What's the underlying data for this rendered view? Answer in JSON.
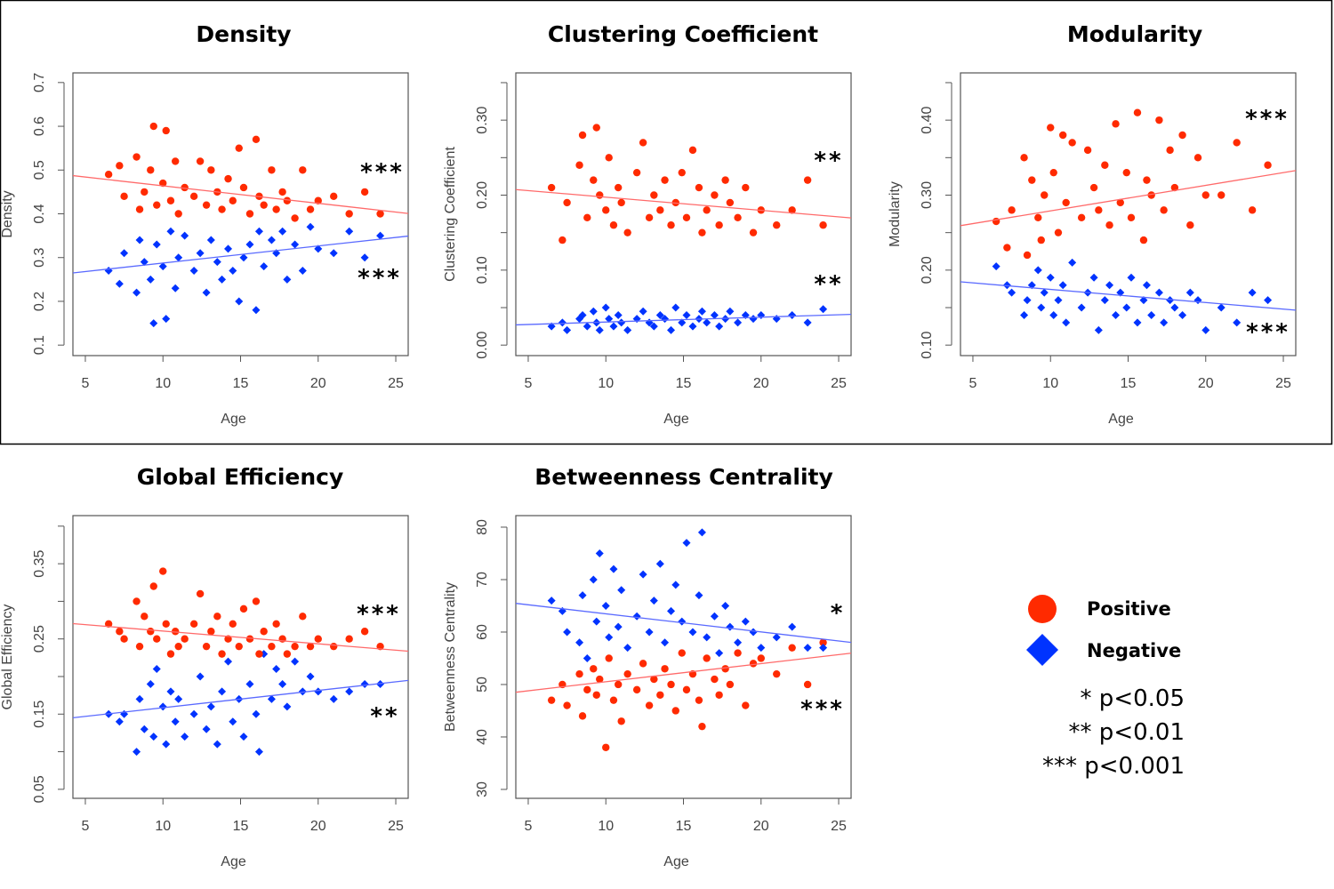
{
  "colors": {
    "positive": "#ff2a00",
    "negative": "#0033ff",
    "positive_line": "#ff6a6a",
    "negative_line": "#5a6aff"
  },
  "legend": {
    "items": [
      {
        "label": "Positive",
        "marker": "circle",
        "color": "#ff2a00"
      },
      {
        "label": "Negative",
        "marker": "diamond",
        "color": "#0033ff"
      }
    ],
    "significance": [
      "* p<0.05",
      "** p<0.01",
      "*** p<0.001"
    ]
  },
  "chart_data": {
    "type": "scatter",
    "xlabel": "Age",
    "xlim": [
      4.2,
      25.8
    ],
    "xticks": [
      5,
      10,
      15,
      20,
      25
    ],
    "x": [
      6.5,
      7.2,
      7.5,
      8.3,
      8.5,
      8.8,
      9.2,
      9.4,
      9.6,
      10.0,
      10.2,
      10.5,
      10.8,
      11.0,
      11.4,
      12.0,
      12.4,
      12.8,
      13.1,
      13.5,
      13.8,
      14.2,
      14.5,
      14.9,
      15.2,
      15.6,
      16.0,
      16.2,
      16.5,
      17.0,
      17.3,
      17.7,
      18.0,
      18.5,
      19.0,
      19.5,
      20.0,
      21.0,
      22.0,
      23.0,
      24.0
    ],
    "panels": [
      {
        "title": "Density",
        "ylabel": "Density",
        "ylim": [
          0.076,
          0.722
        ],
        "yticks": [
          0.1,
          0.2,
          0.3,
          0.4,
          0.5,
          0.6,
          0.7
        ],
        "ytick_labels": [
          "0.1",
          "0.2",
          "0.3",
          "0.4",
          "0.5",
          "0.6",
          "0.7"
        ],
        "series": [
          {
            "name": "Positive",
            "values": [
              0.49,
              0.51,
              0.44,
              0.53,
              0.41,
              0.45,
              0.5,
              0.6,
              0.42,
              0.47,
              0.59,
              0.43,
              0.52,
              0.4,
              0.46,
              0.44,
              0.52,
              0.42,
              0.5,
              0.45,
              0.41,
              0.48,
              0.43,
              0.55,
              0.46,
              0.4,
              0.57,
              0.44,
              0.42,
              0.5,
              0.41,
              0.45,
              0.43,
              0.39,
              0.5,
              0.41,
              0.43,
              0.44,
              0.4,
              0.45,
              0.4
            ],
            "fit": [
              [
                5,
                0.484
              ],
              [
                25,
                0.404
              ]
            ],
            "significance": "***"
          },
          {
            "name": "Negative",
            "values": [
              0.27,
              0.24,
              0.31,
              0.22,
              0.34,
              0.29,
              0.25,
              0.15,
              0.33,
              0.28,
              0.16,
              0.36,
              0.23,
              0.3,
              0.35,
              0.27,
              0.31,
              0.22,
              0.34,
              0.29,
              0.25,
              0.32,
              0.27,
              0.2,
              0.3,
              0.33,
              0.18,
              0.36,
              0.28,
              0.34,
              0.31,
              0.36,
              0.25,
              0.33,
              0.27,
              0.37,
              0.32,
              0.31,
              0.36,
              0.3,
              0.35
            ],
            "fit": [
              [
                5,
                0.268
              ],
              [
                25,
                0.346
              ]
            ],
            "significance": "***"
          }
        ]
      },
      {
        "title": "Clustering Coefficient",
        "ylabel": "Clustering Coefficient",
        "ylim": [
          -0.014,
          0.363
        ],
        "yticks": [
          0,
          0.05,
          0.1,
          0.15,
          0.2,
          0.25,
          0.3,
          0.35
        ],
        "ytick_labels": [
          "0.00",
          "",
          "0.10",
          "",
          "0.20",
          "",
          "0.30",
          ""
        ],
        "series": [
          {
            "name": "Positive",
            "values": [
              0.21,
              0.14,
              0.19,
              0.24,
              0.28,
              0.17,
              0.22,
              0.29,
              0.2,
              0.18,
              0.25,
              0.16,
              0.21,
              0.19,
              0.15,
              0.23,
              0.27,
              0.17,
              0.2,
              0.18,
              0.22,
              0.16,
              0.19,
              0.23,
              0.17,
              0.26,
              0.21,
              0.15,
              0.18,
              0.2,
              0.16,
              0.22,
              0.19,
              0.17,
              0.21,
              0.15,
              0.18,
              0.16,
              0.18,
              0.22,
              0.16
            ],
            "fit": [
              [
                5,
                0.206
              ],
              [
                25,
                0.171
              ]
            ],
            "significance": "**"
          },
          {
            "name": "Negative",
            "values": [
              0.025,
              0.03,
              0.02,
              0.035,
              0.04,
              0.025,
              0.045,
              0.03,
              0.02,
              0.05,
              0.035,
              0.025,
              0.04,
              0.03,
              0.02,
              0.035,
              0.045,
              0.03,
              0.025,
              0.04,
              0.035,
              0.02,
              0.05,
              0.03,
              0.04,
              0.025,
              0.035,
              0.045,
              0.03,
              0.04,
              0.025,
              0.035,
              0.045,
              0.03,
              0.04,
              0.035,
              0.04,
              0.035,
              0.04,
              0.03,
              0.048
            ],
            "fit": [
              [
                5,
                0.0275
              ],
              [
                25,
                0.0405
              ]
            ],
            "significance": "**"
          }
        ]
      },
      {
        "title": "Modularity",
        "ylabel": "Modularity",
        "ylim": [
          0.086,
          0.463
        ],
        "yticks": [
          0.1,
          0.15,
          0.2,
          0.25,
          0.3,
          0.35,
          0.4,
          0.45
        ],
        "ytick_labels": [
          "0.10",
          "",
          "0.20",
          "",
          "0.30",
          "",
          "0.40",
          ""
        ],
        "series": [
          {
            "name": "Positive",
            "values": [
              0.265,
              0.23,
              0.28,
              0.35,
              0.22,
              0.32,
              0.27,
              0.24,
              0.3,
              0.39,
              0.33,
              0.25,
              0.38,
              0.29,
              0.37,
              0.27,
              0.36,
              0.31,
              0.28,
              0.34,
              0.26,
              0.395,
              0.29,
              0.33,
              0.27,
              0.41,
              0.24,
              0.32,
              0.3,
              0.4,
              0.28,
              0.36,
              0.31,
              0.38,
              0.26,
              0.35,
              0.3,
              0.3,
              0.37,
              0.28,
              0.34
            ],
            "fit": [
              [
                5,
                0.262
              ],
              [
                25,
                0.33
              ]
            ],
            "significance": "***"
          },
          {
            "name": "Negative",
            "values": [
              0.205,
              0.18,
              0.17,
              0.14,
              0.16,
              0.18,
              0.2,
              0.15,
              0.17,
              0.19,
              0.14,
              0.16,
              0.18,
              0.13,
              0.21,
              0.15,
              0.17,
              0.19,
              0.12,
              0.16,
              0.18,
              0.14,
              0.17,
              0.15,
              0.19,
              0.13,
              0.16,
              0.18,
              0.14,
              0.17,
              0.13,
              0.16,
              0.15,
              0.14,
              0.17,
              0.16,
              0.12,
              0.15,
              0.13,
              0.17,
              0.16
            ],
            "fit": [
              [
                5,
                0.183
              ],
              [
                25,
                0.148
              ]
            ],
            "significance": "***"
          }
        ]
      },
      {
        "title": "Global Efficiency",
        "ylabel": "Global Efficiency",
        "ylim": [
          0.038,
          0.414
        ],
        "yticks": [
          0.05,
          0.1,
          0.15,
          0.2,
          0.25,
          0.3,
          0.35,
          0.4
        ],
        "ytick_labels": [
          "0.05",
          "",
          "0.15",
          "",
          "0.25",
          "",
          "0.35",
          ""
        ],
        "series": [
          {
            "name": "Positive",
            "values": [
              0.27,
              0.26,
              0.25,
              0.3,
              0.24,
              0.28,
              0.26,
              0.32,
              0.25,
              0.34,
              0.27,
              0.23,
              0.26,
              0.24,
              0.25,
              0.27,
              0.31,
              0.24,
              0.26,
              0.28,
              0.23,
              0.25,
              0.27,
              0.24,
              0.29,
              0.25,
              0.3,
              0.23,
              0.26,
              0.24,
              0.27,
              0.25,
              0.23,
              0.24,
              0.28,
              0.24,
              0.25,
              0.24,
              0.25,
              0.26,
              0.24
            ],
            "fit": [
              [
                5,
                0.269
              ],
              [
                25,
                0.235
              ]
            ],
            "significance": "***"
          },
          {
            "name": "Negative",
            "values": [
              0.15,
              0.14,
              0.15,
              0.1,
              0.17,
              0.13,
              0.19,
              0.12,
              0.21,
              0.16,
              0.11,
              0.18,
              0.14,
              0.17,
              0.12,
              0.15,
              0.2,
              0.13,
              0.16,
              0.11,
              0.18,
              0.22,
              0.14,
              0.17,
              0.12,
              0.19,
              0.15,
              0.1,
              0.23,
              0.17,
              0.21,
              0.19,
              0.16,
              0.22,
              0.18,
              0.2,
              0.18,
              0.17,
              0.18,
              0.19,
              0.19
            ],
            "fit": [
              [
                5,
                0.147
              ],
              [
                25,
                0.193
              ]
            ],
            "significance": "**"
          }
        ]
      },
      {
        "title": "Betweenness Centrality",
        "ylabel": "Betweenness Centrality",
        "ylim": [
          28.3,
          82.2
        ],
        "yticks": [
          30,
          40,
          50,
          60,
          70,
          80
        ],
        "ytick_labels": [
          "30",
          "40",
          "50",
          "60",
          "70",
          "80"
        ],
        "series": [
          {
            "name": "Positive",
            "values": [
              47,
              50,
              46,
              52,
              44,
              49,
              53,
              48,
              51,
              38,
              55,
              47,
              50,
              43,
              52,
              49,
              54,
              46,
              51,
              48,
              53,
              50,
              45,
              56,
              49,
              52,
              47,
              42,
              55,
              51,
              48,
              53,
              50,
              56,
              46,
              54,
              55,
              52,
              57,
              50,
              58
            ],
            "fit": [
              [
                5,
                48.8
              ],
              [
                25,
                55.7
              ]
            ],
            "significance": "***"
          },
          {
            "name": "Negative",
            "values": [
              66,
              64,
              60,
              58,
              67,
              55,
              70,
              62,
              75,
              65,
              59,
              72,
              61,
              68,
              57,
              63,
              71,
              60,
              66,
              73,
              58,
              64,
              69,
              62,
              77,
              60,
              67,
              79,
              59,
              63,
              56,
              65,
              61,
              58,
              62,
              60,
              57,
              59,
              61,
              57,
              57
            ],
            "fit": [
              [
                5,
                65.2
              ],
              [
                25,
                58.3
              ]
            ],
            "significance": "*"
          }
        ]
      }
    ]
  }
}
